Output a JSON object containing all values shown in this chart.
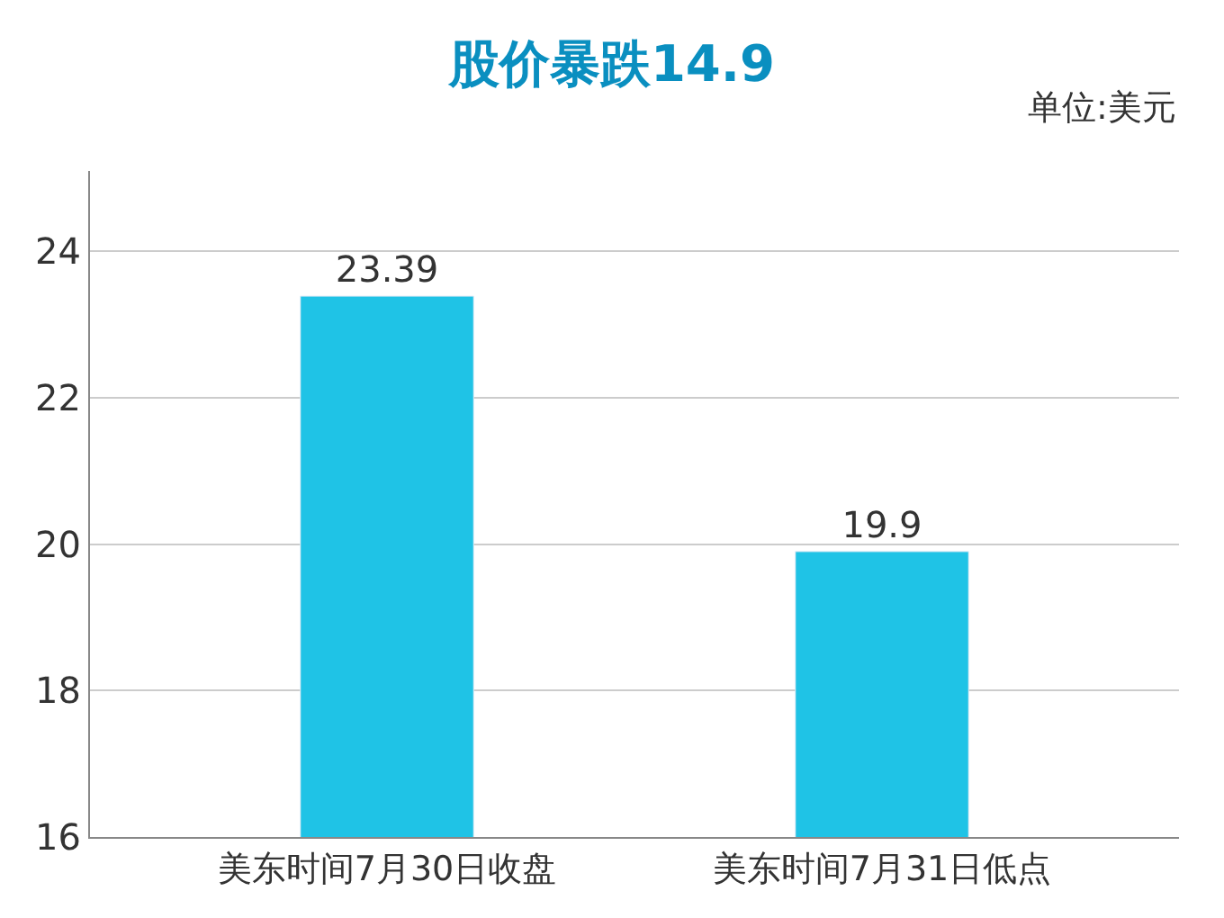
{
  "chart_data": {
    "type": "bar",
    "title": "股价暴跌14.9",
    "annotations": [
      "单位:美元"
    ],
    "categories": [
      "美东时间7月30日收盘",
      "美东时间7月31日低点"
    ],
    "values": [
      23.39,
      19.9
    ],
    "value_labels": [
      "23.39",
      "19.9"
    ],
    "color": "#1fc3e6",
    "ylim": [
      16,
      25.1
    ],
    "yticks": [
      16,
      18,
      20,
      22,
      24
    ],
    "grid": "y"
  }
}
